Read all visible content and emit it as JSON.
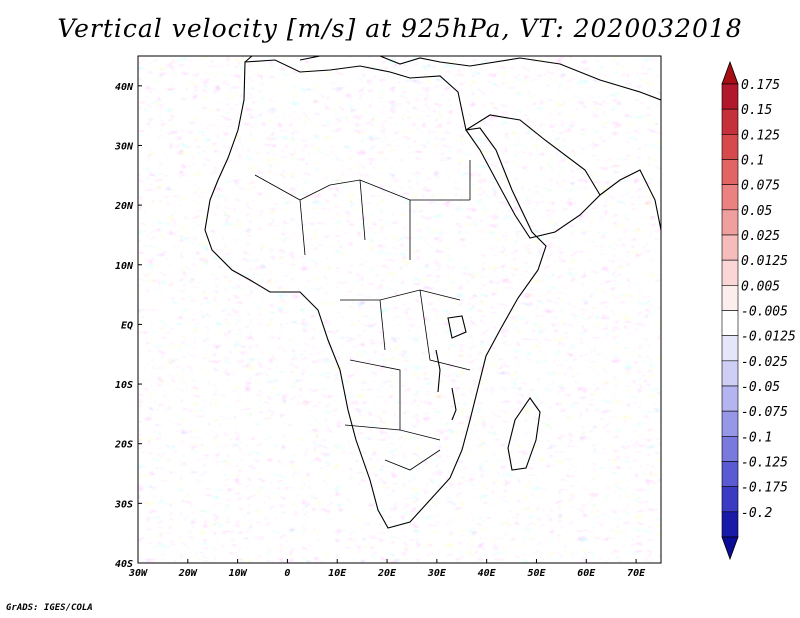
{
  "title": "Vertical velocity [m/s] at 925hPa, VT: 2020032018",
  "credit": "GrADS: IGES/COLA",
  "map": {
    "lon_range": [
      -30,
      75
    ],
    "lat_range": [
      -40,
      45
    ],
    "lon_ticks": [
      {
        "value": -30,
        "label": "30W"
      },
      {
        "value": -20,
        "label": "20W"
      },
      {
        "value": -10,
        "label": "10W"
      },
      {
        "value": 0,
        "label": "0"
      },
      {
        "value": 10,
        "label": "10E"
      },
      {
        "value": 20,
        "label": "20E"
      },
      {
        "value": 30,
        "label": "30E"
      },
      {
        "value": 40,
        "label": "40E"
      },
      {
        "value": 50,
        "label": "50E"
      },
      {
        "value": 60,
        "label": "60E"
      },
      {
        "value": 70,
        "label": "70E"
      }
    ],
    "lat_ticks": [
      {
        "value": 40,
        "label": "40N"
      },
      {
        "value": 30,
        "label": "30N"
      },
      {
        "value": 20,
        "label": "20N"
      },
      {
        "value": 10,
        "label": "10N"
      },
      {
        "value": 0,
        "label": "EQ"
      },
      {
        "value": -10,
        "label": "10S"
      },
      {
        "value": -20,
        "label": "20S"
      },
      {
        "value": -30,
        "label": "30S"
      },
      {
        "value": -40,
        "label": "40S"
      }
    ]
  },
  "colorbar": {
    "levels": [
      {
        "label": "0.175",
        "color": "#b2182b"
      },
      {
        "label": "0.15",
        "color": "#c5303a"
      },
      {
        "label": "0.125",
        "color": "#d6494c"
      },
      {
        "label": "0.1",
        "color": "#e26565"
      },
      {
        "label": "0.075",
        "color": "#ea8282"
      },
      {
        "label": "0.05",
        "color": "#f09f9f"
      },
      {
        "label": "0.025",
        "color": "#f6bcbc"
      },
      {
        "label": "0.0125",
        "color": "#fad6d6"
      },
      {
        "label": "0.005",
        "color": "#fdeeee"
      },
      {
        "label": "-0.005",
        "color": "#ffffff"
      },
      {
        "label": "-0.0125",
        "color": "#e6e6fb"
      },
      {
        "label": "-0.025",
        "color": "#cfcff6"
      },
      {
        "label": "-0.05",
        "color": "#b4b4f0"
      },
      {
        "label": "-0.075",
        "color": "#9797e8"
      },
      {
        "label": "-0.1",
        "color": "#7979de"
      },
      {
        "label": "-0.125",
        "color": "#5a5ad2"
      },
      {
        "label": "-0.175",
        "color": "#3a3ac2"
      },
      {
        "label": "-0.2",
        "color": "#1a1aa8"
      }
    ],
    "top_cap_color": "#a50f15",
    "bottom_cap_color": "#0c0c96"
  }
}
